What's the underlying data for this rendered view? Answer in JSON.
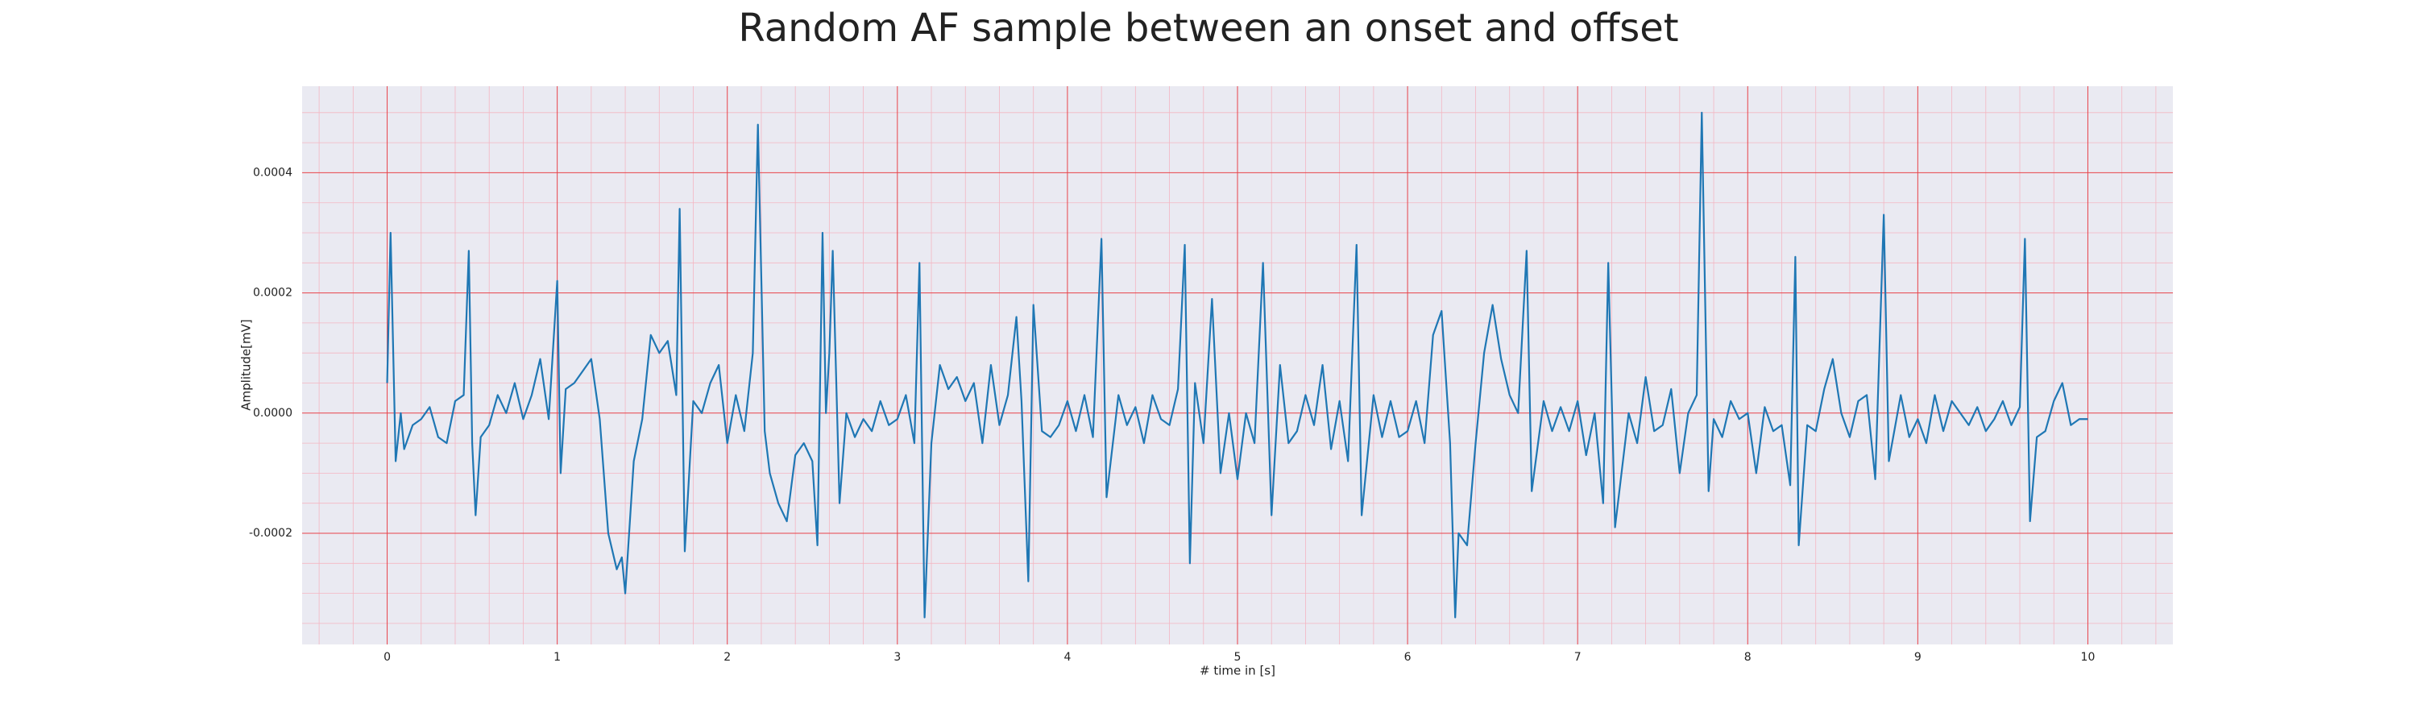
{
  "chart_data": {
    "type": "line",
    "title": "Random AF sample between an onset and offset",
    "xlabel": "# time in [s]",
    "ylabel": "Amplitude[mV]",
    "xlim": [
      -0.5,
      10.5
    ],
    "ylim": [
      -0.000385,
      0.000544
    ],
    "xticks": [
      0,
      1,
      2,
      3,
      4,
      5,
      6,
      7,
      8,
      9,
      10
    ],
    "yticks": [
      -0.0002,
      {
        "value": 0,
        "label": "0.0000"
      },
      0.0002,
      0.0004
    ],
    "grid": true,
    "minor_grid": true,
    "color": "#1f77b4",
    "x": [
      0,
      0.02,
      0.05,
      0.08,
      0.1,
      0.15,
      0.2,
      0.25,
      0.3,
      0.35,
      0.4,
      0.45,
      0.48,
      0.5,
      0.52,
      0.55,
      0.6,
      0.65,
      0.7,
      0.75,
      0.8,
      0.85,
      0.9,
      0.95,
      1.0,
      1.02,
      1.05,
      1.1,
      1.15,
      1.2,
      1.25,
      1.3,
      1.35,
      1.38,
      1.4,
      1.45,
      1.5,
      1.55,
      1.6,
      1.65,
      1.7,
      1.72,
      1.75,
      1.8,
      1.85,
      1.9,
      1.95,
      2.0,
      2.05,
      2.1,
      2.15,
      2.18,
      2.22,
      2.25,
      2.3,
      2.35,
      2.4,
      2.45,
      2.5,
      2.53,
      2.56,
      2.58,
      2.6,
      2.62,
      2.66,
      2.7,
      2.75,
      2.8,
      2.85,
      2.9,
      2.95,
      3.0,
      3.05,
      3.1,
      3.13,
      3.16,
      3.2,
      3.25,
      3.3,
      3.35,
      3.4,
      3.45,
      3.5,
      3.55,
      3.6,
      3.65,
      3.7,
      3.73,
      3.77,
      3.8,
      3.85,
      3.9,
      3.95,
      4.0,
      4.05,
      4.1,
      4.15,
      4.2,
      4.23,
      4.3,
      4.35,
      4.4,
      4.45,
      4.5,
      4.55,
      4.6,
      4.65,
      4.69,
      4.72,
      4.75,
      4.8,
      4.85,
      4.9,
      4.95,
      5.0,
      5.05,
      5.1,
      5.15,
      5.2,
      5.25,
      5.3,
      5.35,
      5.4,
      5.45,
      5.5,
      5.55,
      5.6,
      5.65,
      5.7,
      5.73,
      5.8,
      5.85,
      5.9,
      5.95,
      6.0,
      6.05,
      6.1,
      6.15,
      6.2,
      6.25,
      6.28,
      6.3,
      6.35,
      6.4,
      6.45,
      6.5,
      6.55,
      6.6,
      6.65,
      6.7,
      6.73,
      6.8,
      6.85,
      6.9,
      6.95,
      7.0,
      7.05,
      7.1,
      7.15,
      7.18,
      7.22,
      7.3,
      7.35,
      7.4,
      7.45,
      7.5,
      7.55,
      7.6,
      7.65,
      7.7,
      7.73,
      7.77,
      7.8,
      7.85,
      7.9,
      7.95,
      8.0,
      8.05,
      8.1,
      8.15,
      8.2,
      8.25,
      8.28,
      8.3,
      8.35,
      8.4,
      8.45,
      8.5,
      8.55,
      8.6,
      8.65,
      8.7,
      8.75,
      8.8,
      8.83,
      8.9,
      8.95,
      9.0,
      9.05,
      9.1,
      9.15,
      9.2,
      9.25,
      9.3,
      9.35,
      9.4,
      9.45,
      9.5,
      9.55,
      9.6,
      9.63,
      9.66,
      9.7,
      9.75,
      9.8,
      9.85,
      9.9,
      9.95,
      10.0
    ],
    "values": [
      5e-05,
      0.0003,
      -8e-05,
      0,
      -6e-05,
      -2e-05,
      -1e-05,
      1e-05,
      -4e-05,
      -5e-05,
      2e-05,
      3e-05,
      0.00027,
      -5e-05,
      -0.00017,
      -4e-05,
      -2e-05,
      3e-05,
      0,
      5e-05,
      -1e-05,
      3e-05,
      9e-05,
      -1e-05,
      0.00022,
      -0.0001,
      4e-05,
      5e-05,
      7e-05,
      9e-05,
      -1e-05,
      -0.0002,
      -0.00026,
      -0.00024,
      -0.0003,
      -8e-05,
      -1e-05,
      0.00013,
      0.0001,
      0.00012,
      3e-05,
      0.00034,
      -0.00023,
      2e-05,
      0,
      5e-05,
      8e-05,
      -5e-05,
      3e-05,
      -3e-05,
      0.0001,
      0.00048,
      -3e-05,
      -0.0001,
      -0.00015,
      -0.00018,
      -7e-05,
      -5e-05,
      -8e-05,
      -0.00022,
      0.0003,
      0,
      0.0001,
      0.00027,
      -0.00015,
      0,
      -4e-05,
      -1e-05,
      -3e-05,
      2e-05,
      -2e-05,
      -1e-05,
      3e-05,
      -5e-05,
      0.00025,
      -0.00034,
      -5e-05,
      8e-05,
      4e-05,
      6e-05,
      2e-05,
      5e-05,
      -5e-05,
      8e-05,
      -2e-05,
      3e-05,
      0.00016,
      2e-05,
      -0.00028,
      0.00018,
      -3e-05,
      -4e-05,
      -2e-05,
      2e-05,
      -3e-05,
      3e-05,
      -4e-05,
      0.00029,
      -0.00014,
      3e-05,
      -2e-05,
      1e-05,
      -5e-05,
      3e-05,
      -1e-05,
      -2e-05,
      4e-05,
      0.00028,
      -0.00025,
      5e-05,
      -5e-05,
      0.00019,
      -0.0001,
      0,
      -0.00011,
      0,
      -5e-05,
      0.00025,
      -0.00017,
      8e-05,
      -5e-05,
      -3e-05,
      3e-05,
      -2e-05,
      8e-05,
      -6e-05,
      2e-05,
      -8e-05,
      0.00028,
      -0.00017,
      3e-05,
      -4e-05,
      2e-05,
      -4e-05,
      -3e-05,
      2e-05,
      -5e-05,
      0.00013,
      0.00017,
      -5e-05,
      -0.00034,
      -0.0002,
      -0.00022,
      -5e-05,
      0.0001,
      0.00018,
      9e-05,
      3e-05,
      0,
      0.00027,
      -0.00013,
      2e-05,
      -3e-05,
      1e-05,
      -3e-05,
      2e-05,
      -7e-05,
      0,
      -0.00015,
      0.00025,
      -0.00019,
      0,
      -5e-05,
      6e-05,
      -3e-05,
      -2e-05,
      4e-05,
      -0.0001,
      0,
      3e-05,
      0.0005,
      -0.00013,
      -1e-05,
      -4e-05,
      2e-05,
      -1e-05,
      0,
      -0.0001,
      1e-05,
      -3e-05,
      -2e-05,
      -0.00012,
      0.00026,
      -0.00022,
      -2e-05,
      -3e-05,
      4e-05,
      9e-05,
      0,
      -4e-05,
      2e-05,
      3e-05,
      -0.00011,
      0.00033,
      -8e-05,
      3e-05,
      -4e-05,
      -1e-05,
      -5e-05,
      3e-05,
      -3e-05,
      2e-05,
      0,
      -2e-05,
      1e-05,
      -3e-05,
      -1e-05,
      2e-05,
      -2e-05,
      1e-05,
      0.00029,
      -0.00018,
      -4e-05,
      -3e-05,
      2e-05,
      5e-05,
      -2e-05,
      -1e-05,
      -1e-05
    ]
  }
}
